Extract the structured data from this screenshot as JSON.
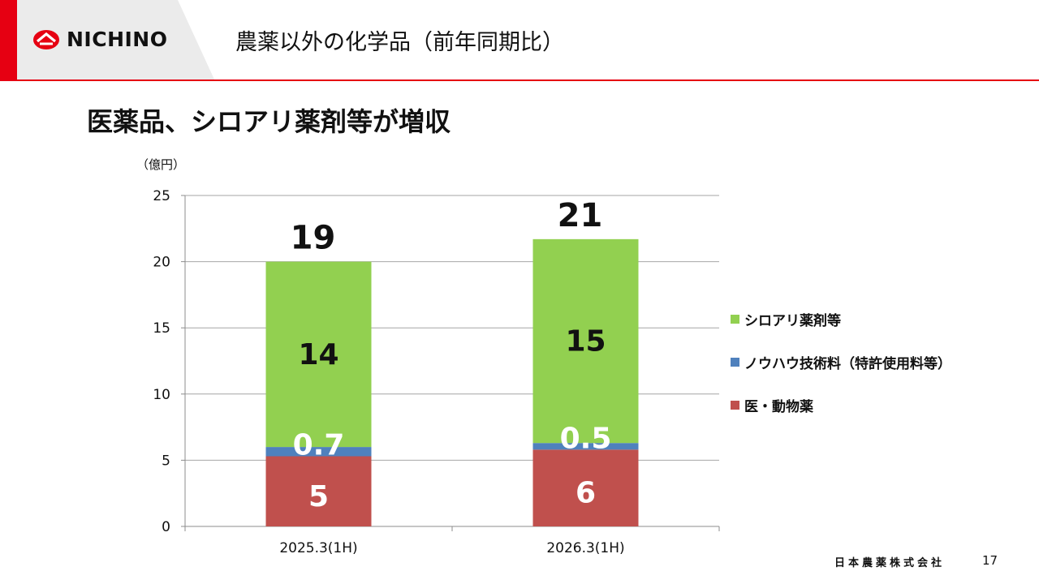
{
  "header": {
    "logo_text": "NICHINO",
    "title": "農薬以外の化学品（前年同期比）"
  },
  "headline": "医薬品、シロアリ薬剤等が増収",
  "unit_label": "（億円）",
  "colors": {
    "accent": "#e60012",
    "series_medical": "#c0504d",
    "series_knowhow": "#4f81bd",
    "series_termite": "#92d050"
  },
  "chart_data": {
    "type": "bar",
    "stacked": true,
    "categories": [
      "2025.3(1H)",
      "2026.3(1H)"
    ],
    "series": [
      {
        "name": "医・動物薬",
        "values": [
          5.3,
          5.8
        ],
        "labels": [
          "5",
          "6"
        ],
        "color": "#c0504d"
      },
      {
        "name": "ノウハウ技術料（特許使用料等）",
        "values": [
          0.7,
          0.5
        ],
        "labels": [
          "0.7",
          "0.5"
        ],
        "color": "#4f81bd"
      },
      {
        "name": "シロアリ薬剤等",
        "values": [
          14.0,
          15.4
        ],
        "labels": [
          "14",
          "15"
        ],
        "color": "#92d050"
      }
    ],
    "totals": [
      "19",
      "21"
    ],
    "yticks": [
      "0",
      "5",
      "10",
      "15",
      "20",
      "25"
    ],
    "ylim": [
      0,
      25
    ],
    "grid": true,
    "legend_position": "right"
  },
  "legend_order": [
    2,
    1,
    0
  ],
  "footer": {
    "company": "日本農薬株式会社",
    "page": "17"
  }
}
